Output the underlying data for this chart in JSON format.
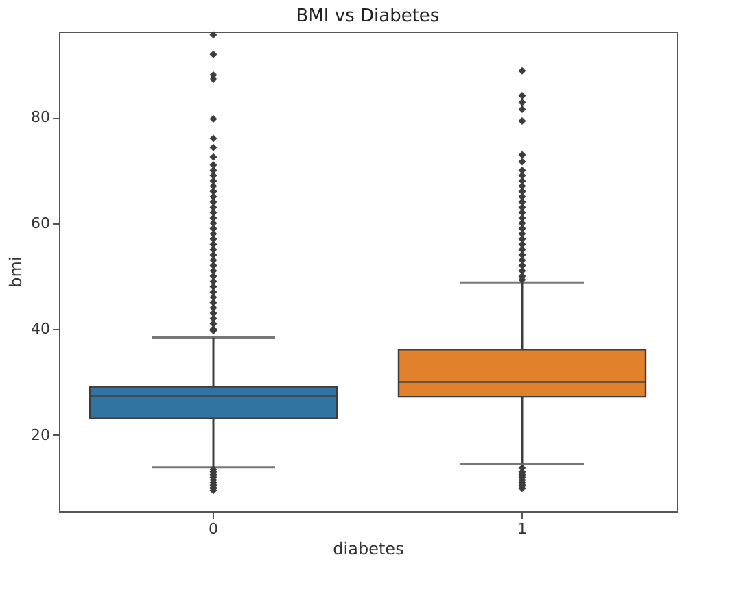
{
  "chart_data": {
    "type": "box",
    "title": "BMI vs Diabetes",
    "xlabel": "diabetes",
    "ylabel": "bmi",
    "categories": [
      "0",
      "1"
    ],
    "colors": [
      "#3274a1",
      "#e1812c"
    ],
    "boxes": [
      {
        "low": 13.9,
        "q1": 23.1,
        "median": 27.3,
        "q3": 29.1,
        "high": 38.4,
        "outliers": [
          95.6,
          91.9,
          88.0,
          87.2,
          79.7,
          76.0,
          74.3,
          72.5,
          71,
          70,
          69,
          68,
          67,
          66,
          65,
          64,
          63,
          62,
          61,
          60,
          59,
          58,
          57,
          56,
          55,
          54,
          53,
          52,
          51,
          50,
          49,
          48,
          47,
          46,
          45,
          44,
          43,
          42,
          41,
          40,
          39.7,
          13.5,
          13,
          12.5,
          12,
          11.5,
          11,
          10.5,
          10,
          9.5
        ]
      },
      {
        "low": 14.6,
        "q1": 27.2,
        "median": 30.0,
        "q3": 36.1,
        "high": 48.8,
        "outliers": [
          88.8,
          84.1,
          82.8,
          81.5,
          79.3,
          72.9,
          71.6,
          70.0,
          69,
          68,
          67,
          66,
          65,
          64,
          63,
          62,
          61,
          60,
          59,
          58,
          57,
          56,
          55,
          54,
          53,
          52,
          51,
          50,
          49.3,
          13.8,
          13,
          12.5,
          12,
          11.5,
          11,
          10.5,
          9.9
        ]
      }
    ],
    "ylim": [
      5.6,
      96.2
    ],
    "yticks": [
      20,
      40,
      60,
      80
    ],
    "grid": false
  }
}
